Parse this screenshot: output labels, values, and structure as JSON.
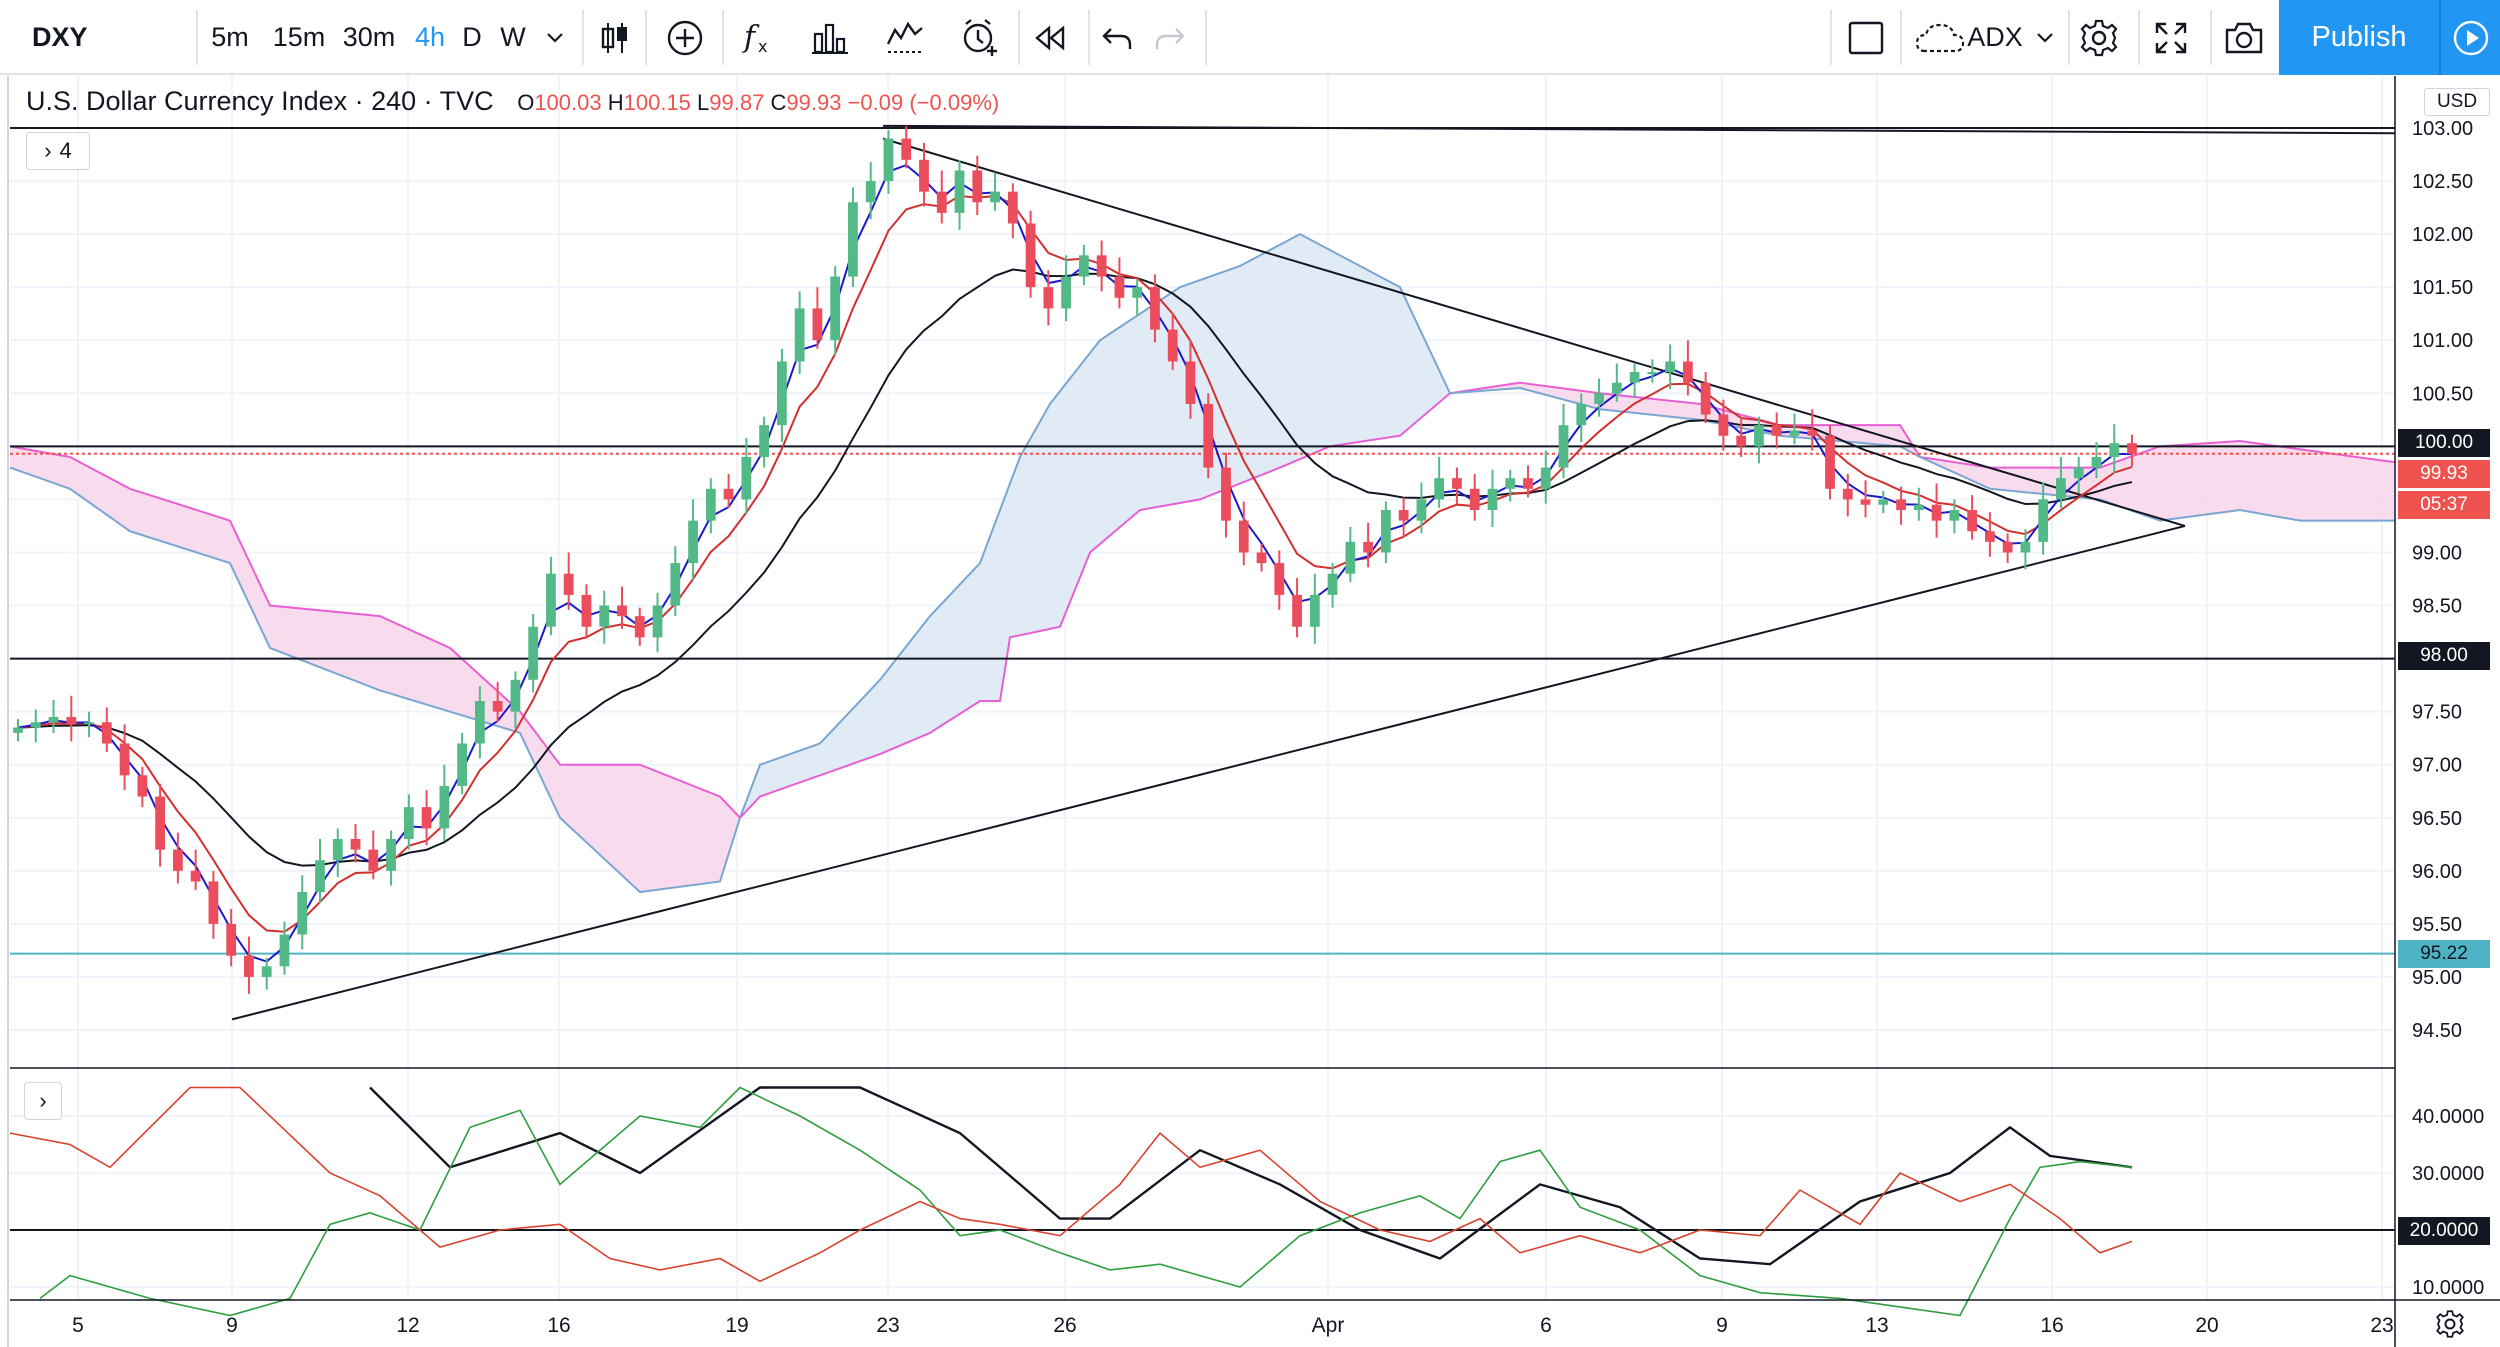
{
  "toolbar": {
    "symbol": "DXY",
    "intervals": [
      "5m",
      "15m",
      "30m",
      "4h",
      "D",
      "W"
    ],
    "active_interval": "4h",
    "indicator_name": "ADX",
    "publish_label": "Publish",
    "icons": [
      "chevron-down-icon",
      "candles-icon",
      "add-circle-icon",
      "function-icon",
      "bars-icon",
      "templates-icon",
      "alert-icon",
      "replay-icon",
      "undo-icon",
      "redo-icon",
      "layout-icon",
      "cloud-icon",
      "gear-icon",
      "fullscreen-icon",
      "camera-icon",
      "play-icon"
    ]
  },
  "legend": {
    "title": "U.S. Dollar Currency Index · 240 · TVC",
    "o_label": "O",
    "o_value": "100.03",
    "h_label": "H",
    "h_value": "100.15",
    "l_label": "L",
    "l_value": "99.87",
    "c_label": "C",
    "c_value": "99.93",
    "change": "−0.09 (−0.09%)",
    "indicators_count": "4"
  },
  "price_axis": {
    "currency": "USD",
    "ticks": [
      "103.00",
      "102.50",
      "102.00",
      "101.50",
      "101.00",
      "100.50",
      "100.00",
      "99.50",
      "99.00",
      "98.50",
      "98.00",
      "97.50",
      "97.00",
      "96.50",
      "96.00",
      "95.50",
      "95.00",
      "94.50"
    ],
    "tag_100": "100.00",
    "tag_last": "99.93",
    "tag_countdown": "05:37",
    "tag_98": "98.00",
    "tag_9522": "95.22"
  },
  "adx_axis": {
    "ticks": [
      "40.0000",
      "30.0000",
      "10.0000"
    ],
    "tag_20": "20.0000"
  },
  "time_axis": {
    "labels": [
      "5",
      "9",
      "12",
      "16",
      "19",
      "23",
      "26",
      "Apr",
      "6",
      "9",
      "13",
      "16",
      "20",
      "23"
    ]
  },
  "colors": {
    "accent": "#2196f3",
    "up": "#26a69a",
    "down": "#ef5350",
    "candle_up": "#53b987",
    "candle_down": "#eb4d5c",
    "cloud_pink": "#f8d7ec",
    "cloud_blue": "#dde9f4"
  },
  "chart_data": {
    "type": "candlestick",
    "series": [
      {
        "name": "DXY 4h close (approx.)",
        "values": [
          97.35,
          97.4,
          97.45,
          97.38,
          97.4,
          97.2,
          96.9,
          96.7,
          96.2,
          96.0,
          95.9,
          95.5,
          95.2,
          95.0,
          95.1,
          95.4,
          95.8,
          96.1,
          96.3,
          96.2,
          96.0,
          96.3,
          96.6,
          96.4,
          96.8,
          97.2,
          97.6,
          97.5,
          97.8,
          98.3,
          98.8,
          98.6,
          98.3,
          98.5,
          98.4,
          98.2,
          98.5,
          98.9,
          99.3,
          99.6,
          99.5,
          99.9,
          100.2,
          100.8,
          101.3,
          101.0,
          101.6,
          102.3,
          102.5,
          102.9,
          102.7,
          102.4,
          102.2,
          102.6,
          102.3,
          102.4,
          102.1,
          101.5,
          101.3,
          101.6,
          101.8,
          101.6,
          101.4,
          101.5,
          101.1,
          100.8,
          100.4,
          99.8,
          99.3,
          99.0,
          98.9,
          98.6,
          98.3,
          98.6,
          98.8,
          99.1,
          99.0,
          99.4,
          99.3,
          99.5,
          99.7,
          99.6,
          99.4,
          99.6,
          99.7,
          99.6,
          99.8,
          100.2,
          100.4,
          100.5,
          100.6,
          100.7,
          100.7,
          100.8,
          100.6,
          100.3,
          100.1,
          100.0,
          100.2,
          100.1,
          100.15,
          100.1,
          99.6,
          99.5,
          99.45,
          99.5,
          99.4,
          99.45,
          99.3,
          99.4,
          99.2,
          99.1,
          99.0,
          99.1,
          99.5,
          99.7,
          99.8,
          99.9,
          100.03,
          99.93
        ]
      }
    ],
    "indicators": [
      "Ichimoku Cloud",
      "EMA (blue)",
      "EMA (red)",
      "EMA (black)",
      "ADX"
    ],
    "levels": [
      103.0,
      100.0,
      98.0,
      95.22
    ],
    "ylim": [
      94.3,
      103.1
    ],
    "adx_ylim": [
      8,
      45
    ],
    "adx_level": 20,
    "x_labels": [
      "5",
      "9",
      "12",
      "16",
      "19",
      "23",
      "26",
      "Apr",
      "6",
      "9",
      "13",
      "16",
      "20",
      "23"
    ],
    "grid": true,
    "pattern": "symmetrical triangle"
  }
}
